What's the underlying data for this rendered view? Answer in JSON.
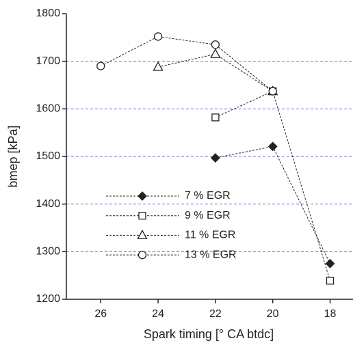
{
  "chart_data": {
    "type": "line",
    "x_label": "Spark timing [° CA btdc]",
    "y_label": "bmep [kPa]",
    "x": [
      26,
      24,
      22,
      20,
      18
    ],
    "xlim": [
      27.2,
      17.2
    ],
    "xticks": [
      26,
      24,
      22,
      20,
      18
    ],
    "ylim": [
      1200,
      1800
    ],
    "yticks": [
      1200,
      1300,
      1400,
      1500,
      1600,
      1700,
      1800
    ],
    "grid": true,
    "grid_color": "#6b6bd0",
    "legend": "lower left",
    "series": [
      {
        "name": "7  % EGR",
        "color": "#222222",
        "marker": "diamond",
        "values": [
          null,
          null,
          1497,
          1521,
          1275
        ]
      },
      {
        "name": "9  % EGR",
        "color": "#222222",
        "marker": "square",
        "values": [
          null,
          null,
          1582,
          1637,
          1239
        ]
      },
      {
        "name": "11 % EGR",
        "color": "#222222",
        "marker": "triangle",
        "values": [
          null,
          1688,
          1715,
          1637,
          null
        ]
      },
      {
        "name": "13 % EGR",
        "color": "#222222",
        "marker": "circle",
        "values": [
          1690,
          1752,
          1735,
          1637,
          null
        ]
      }
    ]
  }
}
